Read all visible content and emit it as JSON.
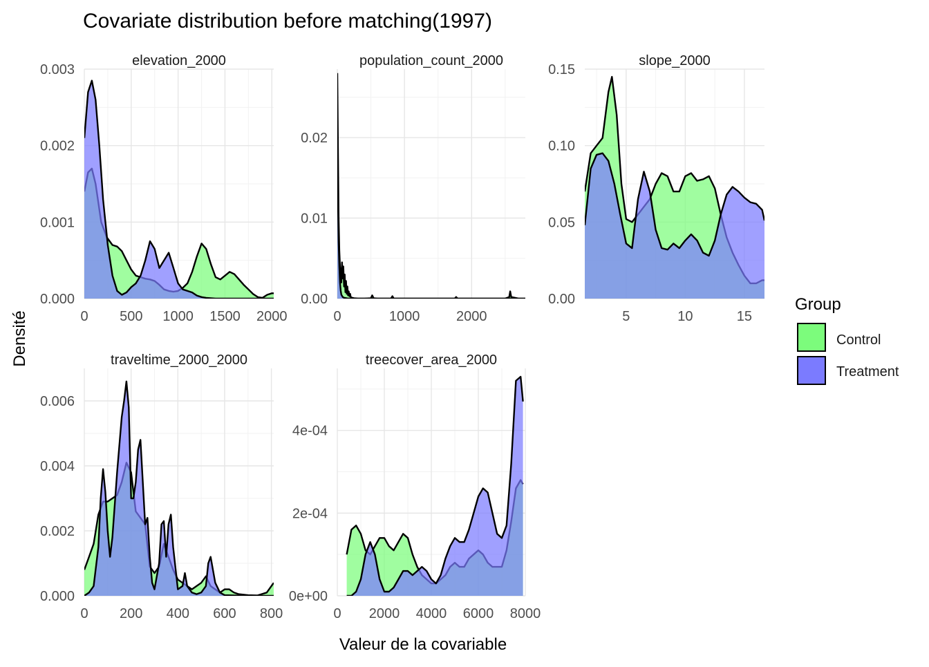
{
  "chart_data": {
    "type": "area",
    "title": "Covariate distribution before matching(1997)",
    "xlabel": "Valeur de la covariable",
    "ylabel": "Densité",
    "legend": {
      "title": "Group",
      "placement": "right",
      "entries": [
        {
          "name": "Control",
          "color": "#7CFC7C"
        },
        {
          "name": "Treatment",
          "color": "#7B7BFF"
        }
      ]
    },
    "overlap_color": "#3B7BBF",
    "grid": true,
    "panels": [
      {
        "name": "elevation_2000",
        "xlim": [
          0,
          2020
        ],
        "ylim": [
          0,
          0.003
        ],
        "xticks": [
          0,
          500,
          1000,
          1500,
          2000
        ],
        "xtick_labels": [
          "0",
          "500",
          "1000",
          "1500",
          "2000"
        ],
        "yticks": [
          0,
          0.001,
          0.002,
          0.003
        ],
        "ytick_labels": [
          "0.000",
          "0.001",
          "0.002",
          "0.003"
        ],
        "series": [
          {
            "name": "Control",
            "x": [
              0,
              40,
              80,
              120,
              180,
              240,
              300,
              350,
              400,
              450,
              500,
              550,
              600,
              650,
              700,
              750,
              800,
              850,
              900,
              950,
              1000,
              1050,
              1100,
              1150,
              1200,
              1250,
              1300,
              1350,
              1400,
              1450,
              1500,
              1550,
              1600,
              1650,
              1700,
              1750,
              1800,
              1850,
              1900,
              1950,
              2000,
              2020
            ],
            "y": [
              0.0014,
              0.00165,
              0.0017,
              0.0015,
              0.001,
              0.0008,
              0.0007,
              0.00068,
              0.00062,
              0.0005,
              0.00038,
              0.0003,
              0.00028,
              0.00026,
              0.00025,
              0.00023,
              0.00018,
              0.00012,
              0.0001,
              9e-05,
              0.0001,
              0.00014,
              0.0002,
              0.00035,
              0.00055,
              0.00072,
              0.00065,
              0.00045,
              0.00028,
              0.00025,
              0.0003,
              0.00035,
              0.00032,
              0.00025,
              0.00018,
              0.00012,
              6e-05,
              2e-05,
              1e-05,
              5e-05,
              7e-05,
              7e-05
            ]
          },
          {
            "name": "Treatment",
            "x": [
              0,
              40,
              80,
              120,
              160,
              200,
              250,
              300,
              350,
              400,
              450,
              500,
              550,
              600,
              650,
              700,
              750,
              800,
              850,
              900,
              950,
              1000,
              1050,
              1100,
              1150,
              1200,
              1250,
              1300,
              1400,
              1500,
              1600,
              1800,
              2020
            ],
            "y": [
              0.0021,
              0.0027,
              0.00285,
              0.0026,
              0.002,
              0.0013,
              0.0007,
              0.0003,
              0.0001,
              5e-05,
              8e-05,
              0.00015,
              0.0002,
              0.0003,
              0.0005,
              0.00075,
              0.00065,
              0.0004,
              0.0005,
              0.0006,
              0.0004,
              0.0002,
              0.00012,
              0.0001,
              8e-05,
              4e-05,
              2e-05,
              1e-05,
              0,
              0,
              0,
              0,
              0
            ]
          }
        ]
      },
      {
        "name": "population_count_2000",
        "xlim": [
          0,
          2800
        ],
        "ylim": [
          0,
          0.0285
        ],
        "xticks": [
          0,
          1000,
          2000
        ],
        "xtick_labels": [
          "0",
          "1000",
          "2000"
        ],
        "yticks": [
          0,
          0.01,
          0.02
        ],
        "ytick_labels": [
          "0.00",
          "0.01",
          "0.02"
        ],
        "series": [
          {
            "name": "Control",
            "x": [
              0,
              10,
              20,
              30,
              40,
              50,
              60,
              70,
              80,
              90,
              100,
              110,
              120,
              130,
              140,
              150,
              160,
              170,
              180,
              190,
              200,
              220,
              250,
              300,
              400,
              500,
              520,
              540,
              600,
              800,
              820,
              840,
              900,
              1000,
              1500,
              1750,
              1770,
              1790,
              2000,
              2500,
              2560,
              2575,
              2590,
              2700,
              2800
            ],
            "y": [
              0.028,
              0.018,
              0.01,
              0.006,
              0.004,
              0.003,
              0.002,
              0.0045,
              0.0025,
              0.004,
              0.0015,
              0.003,
              0.0008,
              0.0022,
              0.0006,
              0.0015,
              0.0004,
              0.0009,
              0.0003,
              0.0006,
              0.0002,
              0.0001,
              5e-05,
              2e-05,
              1e-05,
              5e-05,
              0.0004,
              5e-05,
              1e-05,
              2e-05,
              0.0003,
              2e-05,
              1e-05,
              1e-05,
              1e-05,
              2e-05,
              0.0002,
              2e-05,
              1e-05,
              1e-05,
              0.0002,
              0.0009,
              0.0002,
              1e-05,
              0
            ]
          },
          {
            "name": "Treatment",
            "x": [
              0,
              10,
              20,
              30,
              40,
              50,
              60,
              80,
              100,
              150,
              200,
              300,
              2800
            ],
            "y": [
              0.02,
              0.012,
              0.007,
              0.004,
              0.002,
              0.001,
              0.0005,
              0.0002,
              0.0001,
              3e-05,
              1e-05,
              0,
              0
            ]
          }
        ]
      },
      {
        "name": "slope_2000",
        "xlim": [
          1.5,
          16.7
        ],
        "ylim": [
          0,
          0.15
        ],
        "xticks": [
          5,
          10,
          15
        ],
        "xtick_labels": [
          "5",
          "10",
          "15"
        ],
        "yticks": [
          0,
          0.05,
          0.1,
          0.15
        ],
        "ytick_labels": [
          "0.00",
          "0.05",
          "0.10",
          "0.15"
        ],
        "series": [
          {
            "name": "Control",
            "x": [
              1.5,
              2.0,
              2.5,
              3.0,
              3.5,
              3.8,
              4.2,
              4.6,
              5.0,
              5.5,
              6.0,
              6.5,
              7.0,
              7.5,
              8.0,
              8.5,
              9.0,
              9.5,
              10.0,
              10.5,
              11.0,
              11.5,
              12.0,
              12.5,
              13.0,
              13.5,
              14.0,
              14.5,
              15.0,
              15.5,
              16.0,
              16.5,
              16.7
            ],
            "y": [
              0.07,
              0.095,
              0.1,
              0.105,
              0.135,
              0.145,
              0.12,
              0.075,
              0.052,
              0.05,
              0.055,
              0.06,
              0.065,
              0.075,
              0.082,
              0.08,
              0.07,
              0.07,
              0.08,
              0.082,
              0.077,
              0.078,
              0.08,
              0.072,
              0.055,
              0.04,
              0.03,
              0.022,
              0.015,
              0.01,
              0.01,
              0.012,
              0.012
            ]
          },
          {
            "name": "Treatment",
            "x": [
              1.5,
              2.0,
              2.5,
              3.0,
              3.5,
              4.0,
              4.5,
              5.0,
              5.5,
              6.0,
              6.5,
              7.0,
              7.5,
              8.0,
              8.5,
              9.0,
              9.5,
              10.0,
              10.5,
              11.0,
              11.5,
              12.0,
              12.5,
              13.0,
              13.5,
              14.0,
              14.5,
              15.0,
              15.5,
              16.0,
              16.5,
              16.7
            ],
            "y": [
              0.048,
              0.085,
              0.094,
              0.095,
              0.09,
              0.075,
              0.055,
              0.036,
              0.033,
              0.065,
              0.083,
              0.07,
              0.045,
              0.033,
              0.032,
              0.036,
              0.033,
              0.038,
              0.042,
              0.038,
              0.03,
              0.028,
              0.038,
              0.055,
              0.068,
              0.073,
              0.07,
              0.066,
              0.063,
              0.062,
              0.058,
              0.051
            ]
          }
        ]
      },
      {
        "name": "traveltime_2000_2000",
        "xlim": [
          0,
          810
        ],
        "ylim": [
          0,
          0.007
        ],
        "xticks": [
          0,
          200,
          400,
          600,
          800
        ],
        "xtick_labels": [
          "0",
          "200",
          "400",
          "600",
          "800"
        ],
        "yticks": [
          0,
          0.002,
          0.004,
          0.006
        ],
        "ytick_labels": [
          "0.000",
          "0.002",
          "0.004",
          "0.006"
        ],
        "series": [
          {
            "name": "Control",
            "x": [
              0,
              20,
              40,
              60,
              80,
              100,
              120,
              140,
              160,
              180,
              200,
              220,
              240,
              260,
              280,
              300,
              320,
              340,
              360,
              380,
              400,
              420,
              440,
              460,
              480,
              500,
              520,
              540,
              560,
              580,
              600,
              620,
              640,
              660,
              700,
              740,
              780,
              800,
              810
            ],
            "y": [
              0.0008,
              0.0012,
              0.0016,
              0.0025,
              0.0029,
              0.0029,
              0.003,
              0.0031,
              0.0035,
              0.0041,
              0.0038,
              0.0026,
              0.0024,
              0.0022,
              0.0009,
              0.0007,
              0.0009,
              0.0016,
              0.0012,
              0.0008,
              0.0005,
              0.0004,
              0.0003,
              0.0002,
              0.0003,
              0.0004,
              0.0006,
              0.0003,
              0.0002,
              0.0001,
              0.0002,
              0.0002,
              0.0001,
              5e-05,
              2e-05,
              1e-05,
              0.0001,
              0.0003,
              0.0004
            ]
          },
          {
            "name": "Treatment",
            "x": [
              0,
              20,
              40,
              60,
              70,
              80,
              90,
              100,
              110,
              120,
              140,
              160,
              170,
              180,
              190,
              200,
              210,
              220,
              230,
              240,
              250,
              260,
              270,
              280,
              290,
              300,
              320,
              330,
              340,
              350,
              360,
              370,
              380,
              400,
              420,
              430,
              440,
              460,
              480,
              500,
              520,
              530,
              540,
              560,
              580,
              600,
              700,
              810
            ],
            "y": [
              0,
              0.0001,
              0.0003,
              0.0015,
              0.003,
              0.0039,
              0.0032,
              0.002,
              0.0012,
              0.0018,
              0.0038,
              0.0055,
              0.006,
              0.0066,
              0.0058,
              0.003,
              0.003,
              0.0035,
              0.0045,
              0.0048,
              0.0035,
              0.0022,
              0.0024,
              0.0012,
              0.0004,
              0.0002,
              0.001,
              0.0022,
              0.0023,
              0.0012,
              0.0022,
              0.0025,
              0.0015,
              0.0002,
              0.0003,
              0.0007,
              0.0003,
              0.0001,
              5e-05,
              0.0001,
              0.0003,
              0.001,
              0.0012,
              0.0004,
              0.0001,
              2e-05,
              0,
              0
            ]
          }
        ]
      },
      {
        "name": "treecover_area_2000",
        "xlim": [
          0,
          8000
        ],
        "ylim": [
          0,
          0.00055
        ],
        "xticks": [
          0,
          2000,
          4000,
          6000,
          8000
        ],
        "xtick_labels": [
          "0",
          "2000",
          "4000",
          "6000",
          "8000"
        ],
        "yticks": [
          0,
          0.0002,
          0.0004
        ],
        "ytick_labels": [
          "0e+00",
          "2e-04",
          "4e-04"
        ],
        "series": [
          {
            "name": "Control",
            "x": [
              400,
              600,
              800,
              1000,
              1200,
              1400,
              1600,
              1800,
              2000,
              2200,
              2400,
              2600,
              2800,
              3000,
              3200,
              3400,
              3600,
              3800,
              4000,
              4200,
              4400,
              4600,
              4800,
              5000,
              5200,
              5400,
              5600,
              5800,
              6000,
              6200,
              6400,
              6600,
              6800,
              7000,
              7200,
              7400,
              7600,
              7800,
              7900
            ],
            "y": [
              0.0001,
              0.00016,
              0.00017,
              0.00015,
              0.00011,
              0.0001,
              0.00012,
              0.00014,
              0.00014,
              0.00012,
              0.00011,
              0.00013,
              0.00015,
              0.00014,
              0.0001,
              7e-05,
              5e-05,
              4e-05,
              3e-05,
              3e-05,
              4e-05,
              5e-05,
              7e-05,
              8e-05,
              7e-05,
              7e-05,
              9e-05,
              0.0001,
              0.00011,
              0.0001,
              8e-05,
              7e-05,
              7e-05,
              7e-05,
              0.00011,
              0.00018,
              0.00026,
              0.00028,
              0.00027
            ]
          },
          {
            "name": "Treatment",
            "x": [
              400,
              600,
              800,
              1000,
              1200,
              1400,
              1600,
              1800,
              2000,
              2200,
              2400,
              2600,
              2800,
              3000,
              3200,
              3400,
              3600,
              3800,
              4000,
              4200,
              4400,
              4600,
              4800,
              5000,
              5200,
              5400,
              5600,
              5800,
              6000,
              6200,
              6400,
              6600,
              6800,
              7000,
              7200,
              7400,
              7600,
              7800,
              7900
            ],
            "y": [
              0.0,
              0.0,
              1e-05,
              4e-05,
              0.0001,
              0.00013,
              0.0001,
              4e-05,
              1e-05,
              1e-05,
              2e-05,
              4e-05,
              6e-05,
              6e-05,
              5e-05,
              6e-05,
              7e-05,
              6e-05,
              4e-05,
              3e-05,
              5e-05,
              9e-05,
              0.00012,
              0.00014,
              0.00013,
              0.00013,
              0.00016,
              0.0002,
              0.00024,
              0.00026,
              0.00025,
              0.0002,
              0.00015,
              0.00014,
              0.00017,
              0.00032,
              0.00052,
              0.00053,
              0.00047
            ]
          }
        ]
      }
    ]
  }
}
